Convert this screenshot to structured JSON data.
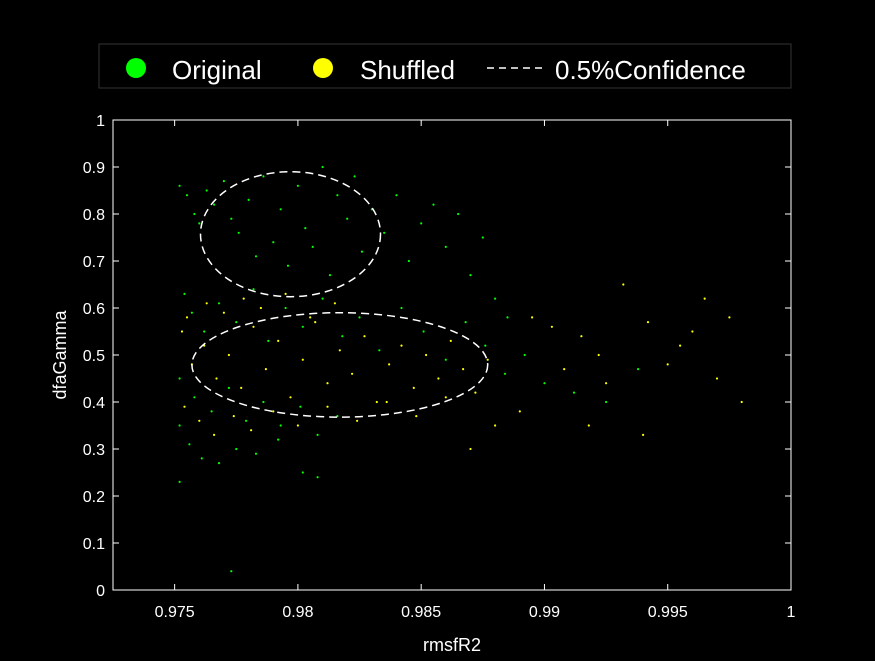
{
  "colors": {
    "background": "#000000",
    "axes": "#ffffff",
    "original": "#00ff00",
    "shuffled": "#ffff00",
    "confidence": "#ffffff"
  },
  "chart_data": {
    "type": "scatter",
    "xlabel": "rmsfR2",
    "ylabel": "dfaGamma",
    "xlim": [
      0.9725,
      1.0
    ],
    "ylim": [
      0,
      1
    ],
    "xticks": [
      0.975,
      0.98,
      0.985,
      0.99,
      0.995,
      1
    ],
    "xtick_labels": [
      "0.975",
      "0.98",
      "0.985",
      "0.99",
      "0.995",
      "1"
    ],
    "yticks": [
      0,
      0.1,
      0.2,
      0.3,
      0.4,
      0.5,
      0.6,
      0.7,
      0.8,
      0.9,
      1
    ],
    "ytick_labels": [
      "0",
      "0.1",
      "0.2",
      "0.3",
      "0.4",
      "0.5",
      "0.6",
      "0.7",
      "0.8",
      "0.9",
      "1"
    ],
    "grid": false,
    "legend_position": "top",
    "legend": [
      "Original",
      "Shuffled",
      "0.5%Confidence"
    ],
    "series": [
      {
        "name": "Original",
        "color": "#00ff00",
        "points": [
          [
            0.9752,
            0.86
          ],
          [
            0.9755,
            0.84
          ],
          [
            0.9758,
            0.8
          ],
          [
            0.976,
            0.78
          ],
          [
            0.9763,
            0.85
          ],
          [
            0.9766,
            0.82
          ],
          [
            0.977,
            0.87
          ],
          [
            0.9773,
            0.79
          ],
          [
            0.9776,
            0.76
          ],
          [
            0.978,
            0.83
          ],
          [
            0.9783,
            0.71
          ],
          [
            0.9786,
            0.88
          ],
          [
            0.979,
            0.74
          ],
          [
            0.9793,
            0.81
          ],
          [
            0.9796,
            0.69
          ],
          [
            0.98,
            0.86
          ],
          [
            0.9803,
            0.77
          ],
          [
            0.9806,
            0.73
          ],
          [
            0.981,
            0.9
          ],
          [
            0.9813,
            0.67
          ],
          [
            0.9816,
            0.84
          ],
          [
            0.982,
            0.79
          ],
          [
            0.9823,
            0.88
          ],
          [
            0.9826,
            0.72
          ],
          [
            0.983,
            0.81
          ],
          [
            0.9835,
            0.76
          ],
          [
            0.984,
            0.84
          ],
          [
            0.9845,
            0.7
          ],
          [
            0.985,
            0.78
          ],
          [
            0.9855,
            0.82
          ],
          [
            0.986,
            0.73
          ],
          [
            0.9865,
            0.8
          ],
          [
            0.987,
            0.67
          ],
          [
            0.9875,
            0.75
          ],
          [
            0.988,
            0.62
          ],
          [
            0.9885,
            0.58
          ],
          [
            0.9754,
            0.63
          ],
          [
            0.9757,
            0.59
          ],
          [
            0.9762,
            0.55
          ],
          [
            0.9768,
            0.61
          ],
          [
            0.9775,
            0.57
          ],
          [
            0.9782,
            0.64
          ],
          [
            0.9788,
            0.53
          ],
          [
            0.9795,
            0.6
          ],
          [
            0.9802,
            0.56
          ],
          [
            0.981,
            0.62
          ],
          [
            0.9818,
            0.54
          ],
          [
            0.9825,
            0.58
          ],
          [
            0.9833,
            0.51
          ],
          [
            0.9842,
            0.6
          ],
          [
            0.9851,
            0.55
          ],
          [
            0.986,
            0.49
          ],
          [
            0.9868,
            0.57
          ],
          [
            0.9876,
            0.52
          ],
          [
            0.9884,
            0.46
          ],
          [
            0.9892,
            0.5
          ],
          [
            0.99,
            0.44
          ],
          [
            0.9912,
            0.42
          ],
          [
            0.9925,
            0.4
          ],
          [
            0.9938,
            0.47
          ],
          [
            0.9752,
            0.45
          ],
          [
            0.9758,
            0.41
          ],
          [
            0.9765,
            0.38
          ],
          [
            0.9772,
            0.43
          ],
          [
            0.9779,
            0.36
          ],
          [
            0.9786,
            0.4
          ],
          [
            0.9793,
            0.35
          ],
          [
            0.9801,
            0.39
          ],
          [
            0.9808,
            0.33
          ],
          [
            0.9816,
            0.37
          ],
          [
            0.9752,
            0.35
          ],
          [
            0.9756,
            0.31
          ],
          [
            0.9761,
            0.28
          ],
          [
            0.9768,
            0.27
          ],
          [
            0.9775,
            0.3
          ],
          [
            0.9783,
            0.29
          ],
          [
            0.9792,
            0.32
          ],
          [
            0.9802,
            0.25
          ],
          [
            0.9808,
            0.24
          ],
          [
            0.9752,
            0.23
          ],
          [
            0.9773,
            0.04
          ]
        ]
      },
      {
        "name": "Shuffled",
        "color": "#ffff00",
        "points": [
          [
            0.9753,
            0.55
          ],
          [
            0.9757,
            0.48
          ],
          [
            0.9762,
            0.52
          ],
          [
            0.9767,
            0.45
          ],
          [
            0.9772,
            0.5
          ],
          [
            0.9777,
            0.43
          ],
          [
            0.9782,
            0.56
          ],
          [
            0.9787,
            0.47
          ],
          [
            0.9792,
            0.53
          ],
          [
            0.9797,
            0.41
          ],
          [
            0.9802,
            0.49
          ],
          [
            0.9807,
            0.57
          ],
          [
            0.9812,
            0.44
          ],
          [
            0.9817,
            0.51
          ],
          [
            0.9822,
            0.46
          ],
          [
            0.9827,
            0.54
          ],
          [
            0.9832,
            0.4
          ],
          [
            0.9837,
            0.48
          ],
          [
            0.9842,
            0.52
          ],
          [
            0.9847,
            0.43
          ],
          [
            0.9852,
            0.5
          ],
          [
            0.9857,
            0.45
          ],
          [
            0.9862,
            0.53
          ],
          [
            0.9867,
            0.47
          ],
          [
            0.9872,
            0.42
          ],
          [
            0.9877,
            0.49
          ],
          [
            0.9754,
            0.39
          ],
          [
            0.976,
            0.36
          ],
          [
            0.9766,
            0.33
          ],
          [
            0.9774,
            0.37
          ],
          [
            0.9781,
            0.34
          ],
          [
            0.979,
            0.38
          ],
          [
            0.98,
            0.35
          ],
          [
            0.9812,
            0.39
          ],
          [
            0.9824,
            0.36
          ],
          [
            0.9836,
            0.4
          ],
          [
            0.9848,
            0.37
          ],
          [
            0.986,
            0.41
          ],
          [
            0.987,
            0.3
          ],
          [
            0.988,
            0.35
          ],
          [
            0.989,
            0.38
          ],
          [
            0.9903,
            0.56
          ],
          [
            0.9915,
            0.54
          ],
          [
            0.9922,
            0.5
          ],
          [
            0.9932,
            0.65
          ],
          [
            0.9942,
            0.57
          ],
          [
            0.995,
            0.48
          ],
          [
            0.996,
            0.55
          ],
          [
            0.9965,
            0.62
          ],
          [
            0.997,
            0.45
          ],
          [
            0.9975,
            0.58
          ],
          [
            0.998,
            0.4
          ],
          [
            0.9955,
            0.52
          ],
          [
            0.994,
            0.33
          ],
          [
            0.9925,
            0.44
          ],
          [
            0.9918,
            0.35
          ],
          [
            0.9908,
            0.47
          ],
          [
            0.9895,
            0.58
          ],
          [
            0.9755,
            0.58
          ],
          [
            0.9763,
            0.61
          ],
          [
            0.977,
            0.59
          ],
          [
            0.9778,
            0.62
          ],
          [
            0.9785,
            0.6
          ],
          [
            0.9795,
            0.63
          ],
          [
            0.9805,
            0.58
          ],
          [
            0.9815,
            0.61
          ]
        ]
      }
    ],
    "confidence_ellipses": [
      {
        "series": "Original",
        "center": [
          0.9797,
          0.757
        ],
        "semi_x": 0.00365,
        "semi_y": 0.133
      },
      {
        "series": "Shuffled",
        "center": [
          0.9817,
          0.479
        ],
        "semi_x": 0.006,
        "semi_y": 0.111
      }
    ]
  }
}
